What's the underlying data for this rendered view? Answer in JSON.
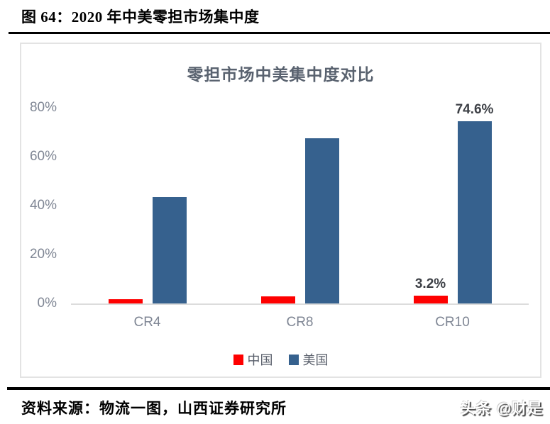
{
  "figure": {
    "caption": "图 64：2020 年中美零担市场集中度",
    "source": "资料来源：物流一图，山西证券研究所",
    "watermark": "头条 @财是"
  },
  "chart_data": {
    "type": "bar",
    "title": "零担市场中美集中度对比",
    "categories": [
      "CR4",
      "CR8",
      "CR10"
    ],
    "series": [
      {
        "name": "中国",
        "color": "#fe0000",
        "values": [
          1.7,
          2.9,
          3.2
        ],
        "labels": [
          "",
          "",
          "3.2%"
        ]
      },
      {
        "name": "美国",
        "color": "#36618e",
        "values": [
          43.5,
          67.5,
          74.6
        ],
        "labels": [
          "",
          "",
          "74.6%"
        ]
      }
    ],
    "xlabel": "",
    "ylabel": "",
    "ylim": [
      0,
      80
    ],
    "yticks": [
      "0%",
      "20%",
      "40%",
      "60%",
      "80%"
    ],
    "grid": false,
    "legend_position": "bottom",
    "axis_label_color": "#7f8694",
    "data_label_color": "#3c3f45",
    "title_color": "#59626f"
  }
}
